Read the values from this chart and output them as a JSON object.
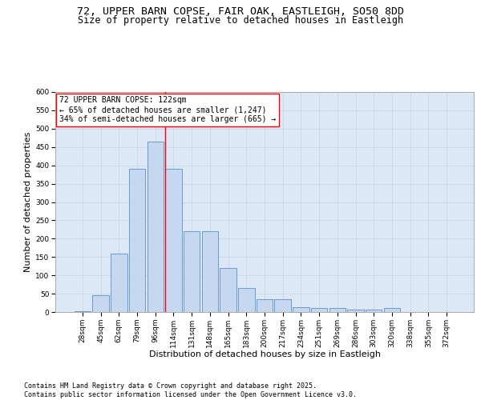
{
  "title_line1": "72, UPPER BARN COPSE, FAIR OAK, EASTLEIGH, SO50 8DD",
  "title_line2": "Size of property relative to detached houses in Eastleigh",
  "xlabel": "Distribution of detached houses by size in Eastleigh",
  "ylabel": "Number of detached properties",
  "categories": [
    "28sqm",
    "45sqm",
    "62sqm",
    "79sqm",
    "96sqm",
    "114sqm",
    "131sqm",
    "148sqm",
    "165sqm",
    "183sqm",
    "200sqm",
    "217sqm",
    "234sqm",
    "251sqm",
    "269sqm",
    "286sqm",
    "303sqm",
    "320sqm",
    "338sqm",
    "355sqm",
    "372sqm"
  ],
  "values": [
    2,
    45,
    160,
    390,
    465,
    390,
    220,
    220,
    120,
    65,
    35,
    35,
    14,
    12,
    10,
    7,
    7,
    10,
    0,
    0,
    0
  ],
  "bar_color": "#c5d8f0",
  "bar_edge_color": "#5b8fc9",
  "grid_color": "#d0d8e8",
  "background_color": "#dce8f5",
  "annotation_box_text": "72 UPPER BARN COPSE: 122sqm\n← 65% of detached houses are smaller (1,247)\n34% of semi-detached houses are larger (665) →",
  "annotation_box_color": "#ffffff",
  "annotation_box_edge_color": "red",
  "vline_x_index": 5,
  "vline_color": "red",
  "ylim": [
    0,
    600
  ],
  "yticks": [
    0,
    50,
    100,
    150,
    200,
    250,
    300,
    350,
    400,
    450,
    500,
    550,
    600
  ],
  "footer_text": "Contains HM Land Registry data © Crown copyright and database right 2025.\nContains public sector information licensed under the Open Government Licence v3.0.",
  "title_fontsize": 9.5,
  "subtitle_fontsize": 8.5,
  "axis_label_fontsize": 8,
  "tick_fontsize": 6.5,
  "annotation_fontsize": 7,
  "footer_fontsize": 6
}
